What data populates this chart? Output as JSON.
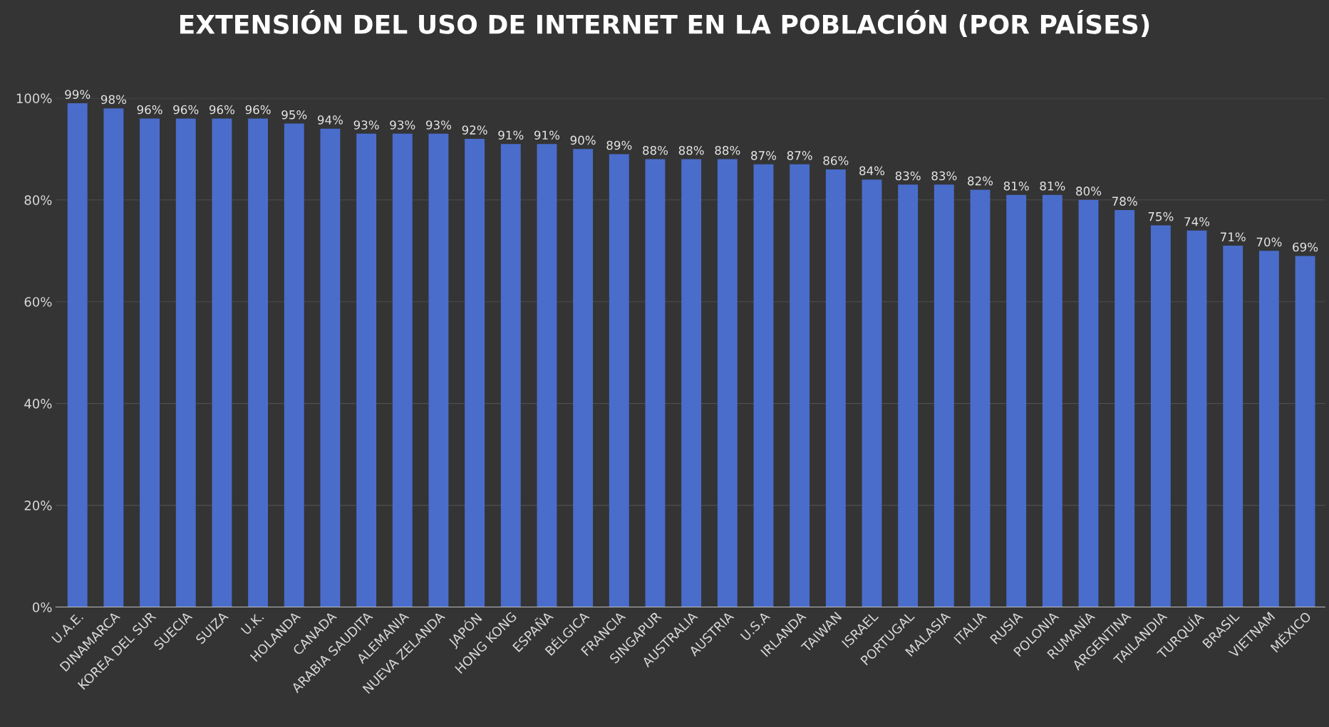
{
  "chart_data": {
    "type": "bar",
    "title": "EXTENSIÓN DEL USO DE INTERNET EN LA POBLACIÓN (POR PAÍSES)",
    "categories": [
      "U.A.E.",
      "DINAMARCA",
      "KOREA DEL SUR",
      "SUECIA",
      "SUIZA",
      "U.K.",
      "HOLANDA",
      "CANADA",
      "ARABIA SAUDITA",
      "ALEMANIA",
      "NUEVA ZELANDA",
      "JAPÓN",
      "HONG KONG",
      "ESPAÑA",
      "BÉLGICA",
      "FRANCIA",
      "SINGAPUR",
      "AUSTRALIA",
      "AUSTRIA",
      "U.S.A",
      "IRLANDA",
      "TAIWAN",
      "ISRAEL",
      "PORTUGAL",
      "MALASIA",
      "ITALIA",
      "RUSIA",
      "POLONIA",
      "RUMANÍA",
      "ARGENTINA",
      "TAILANDIA",
      "TURQUÍA",
      "BRASIL",
      "VIETNAM",
      "MÉXICO"
    ],
    "values": [
      99,
      98,
      96,
      96,
      96,
      96,
      95,
      94,
      93,
      93,
      93,
      92,
      91,
      91,
      90,
      89,
      88,
      88,
      88,
      87,
      87,
      86,
      84,
      83,
      83,
      82,
      81,
      81,
      80,
      78,
      75,
      74,
      71,
      70,
      69
    ],
    "value_labels": [
      "99%",
      "98%",
      "96%",
      "96%",
      "96%",
      "96%",
      "95%",
      "94%",
      "93%",
      "93%",
      "93%",
      "92%",
      "91%",
      "91%",
      "90%",
      "89%",
      "88%",
      "88%",
      "88%",
      "87%",
      "87%",
      "86%",
      "84%",
      "83%",
      "83%",
      "82%",
      "81%",
      "81%",
      "80%",
      "78%",
      "75%",
      "74%",
      "71%",
      "70%",
      "69%"
    ],
    "color": "#4a6dcc",
    "ylim": [
      0,
      100
    ],
    "yticks": [
      {
        "value": 0,
        "label": "0%"
      },
      {
        "value": 20,
        "label": "20%"
      },
      {
        "value": 40,
        "label": "40%"
      },
      {
        "value": 60,
        "label": "60%"
      },
      {
        "value": 80,
        "label": "80%"
      },
      {
        "value": 100,
        "label": "100%"
      }
    ],
    "grid": "y"
  }
}
